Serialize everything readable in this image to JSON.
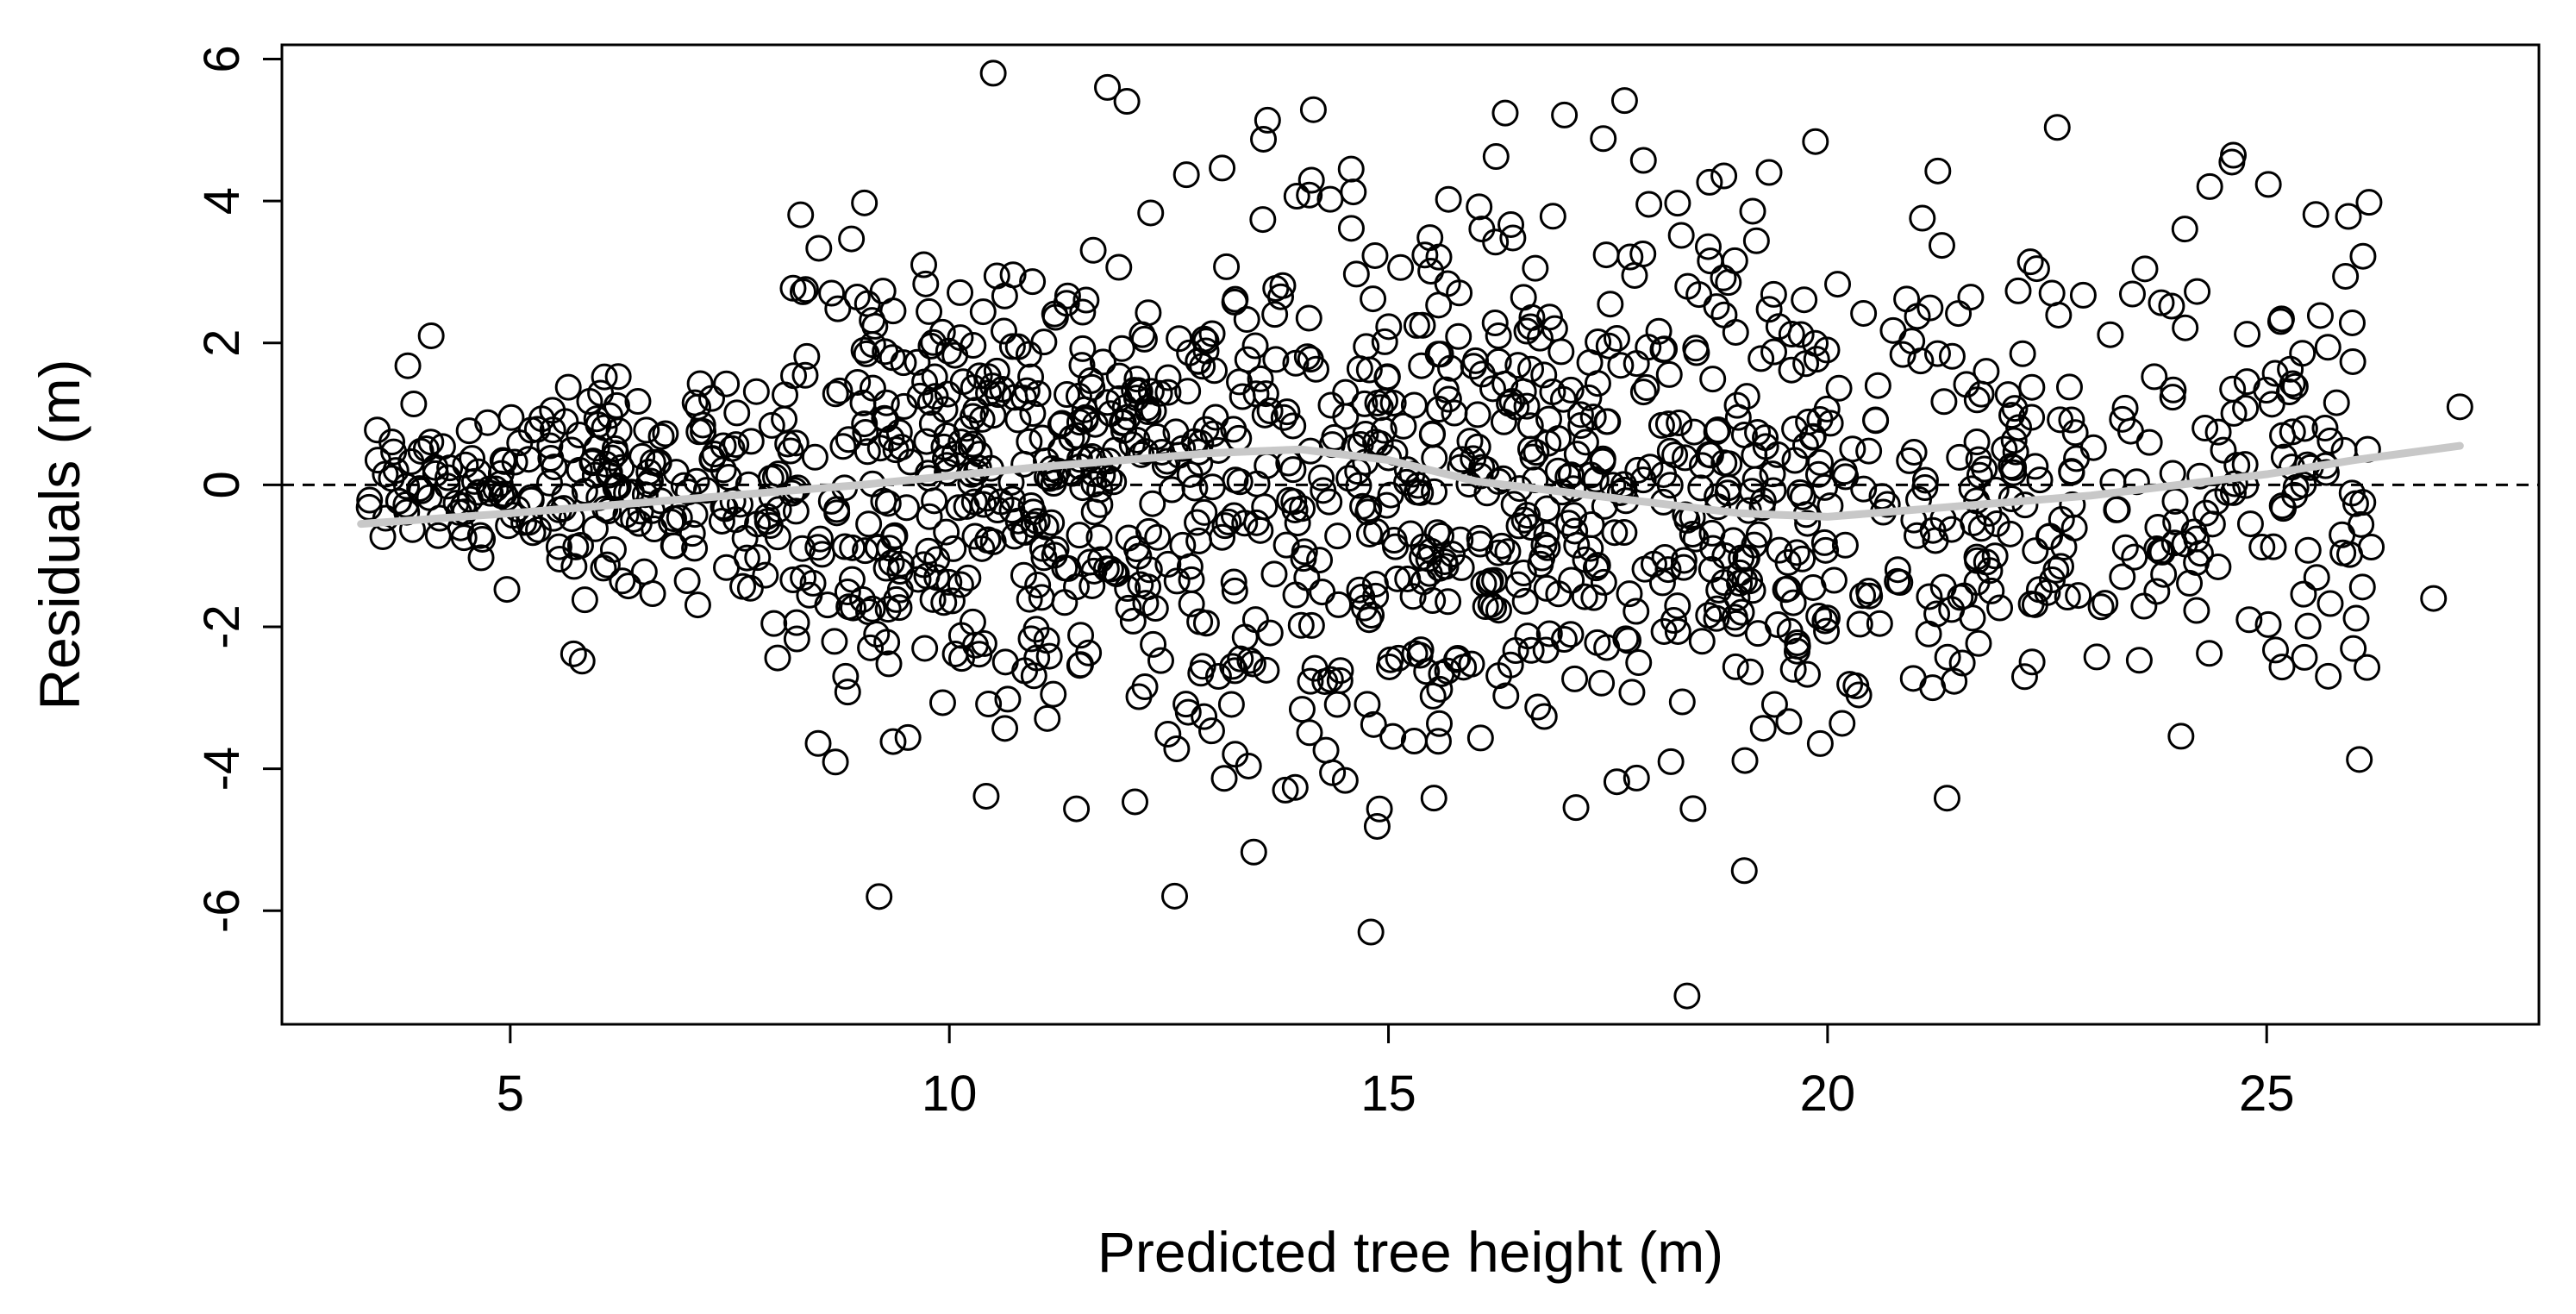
{
  "chart_data": {
    "type": "scatter",
    "title": "",
    "xlabel": "Predicted tree height (m)",
    "ylabel": "Residuals (m)",
    "xlim": [
      2.4,
      28.1
    ],
    "ylim": [
      -7.6,
      6.2
    ],
    "xticks": [
      5,
      10,
      15,
      20,
      25
    ],
    "yticks": [
      -6,
      -4,
      -2,
      0,
      2,
      4,
      6
    ],
    "x_tick_labels": [
      "5",
      "10",
      "15",
      "20",
      "25"
    ],
    "y_tick_labels": [
      "-6",
      "-4",
      "-2",
      "0",
      "2",
      "4",
      "6"
    ],
    "reference_line": {
      "y": 0,
      "style": "dashed"
    },
    "point_count": 1500,
    "x_range": [
      3.3,
      27.2
    ],
    "notable_points": [
      {
        "x": 18.4,
        "y": -7.2
      },
      {
        "x": 10.5,
        "y": 5.8
      },
      {
        "x": 11.8,
        "y": 5.6
      },
      {
        "x": 14.8,
        "y": -6.3
      },
      {
        "x": 27.2,
        "y": 1.1
      },
      {
        "x": 26.9,
        "y": -1.6
      },
      {
        "x": 9.2,
        "y": -5.8
      },
      {
        "x": 4.1,
        "y": 2.1
      }
    ],
    "smooth": {
      "x": [
        3.3,
        5,
        7,
        9,
        11,
        13,
        14,
        15,
        16,
        17,
        18,
        19,
        20,
        21,
        22,
        23,
        24,
        25,
        26,
        27.2
      ],
      "y": [
        -0.55,
        -0.4,
        -0.2,
        0.0,
        0.25,
        0.45,
        0.5,
        0.35,
        0.05,
        -0.1,
        -0.25,
        -0.4,
        -0.45,
        -0.35,
        -0.25,
        -0.15,
        0.0,
        0.15,
        0.35,
        0.55
      ]
    },
    "grid": false,
    "legend": "none"
  }
}
